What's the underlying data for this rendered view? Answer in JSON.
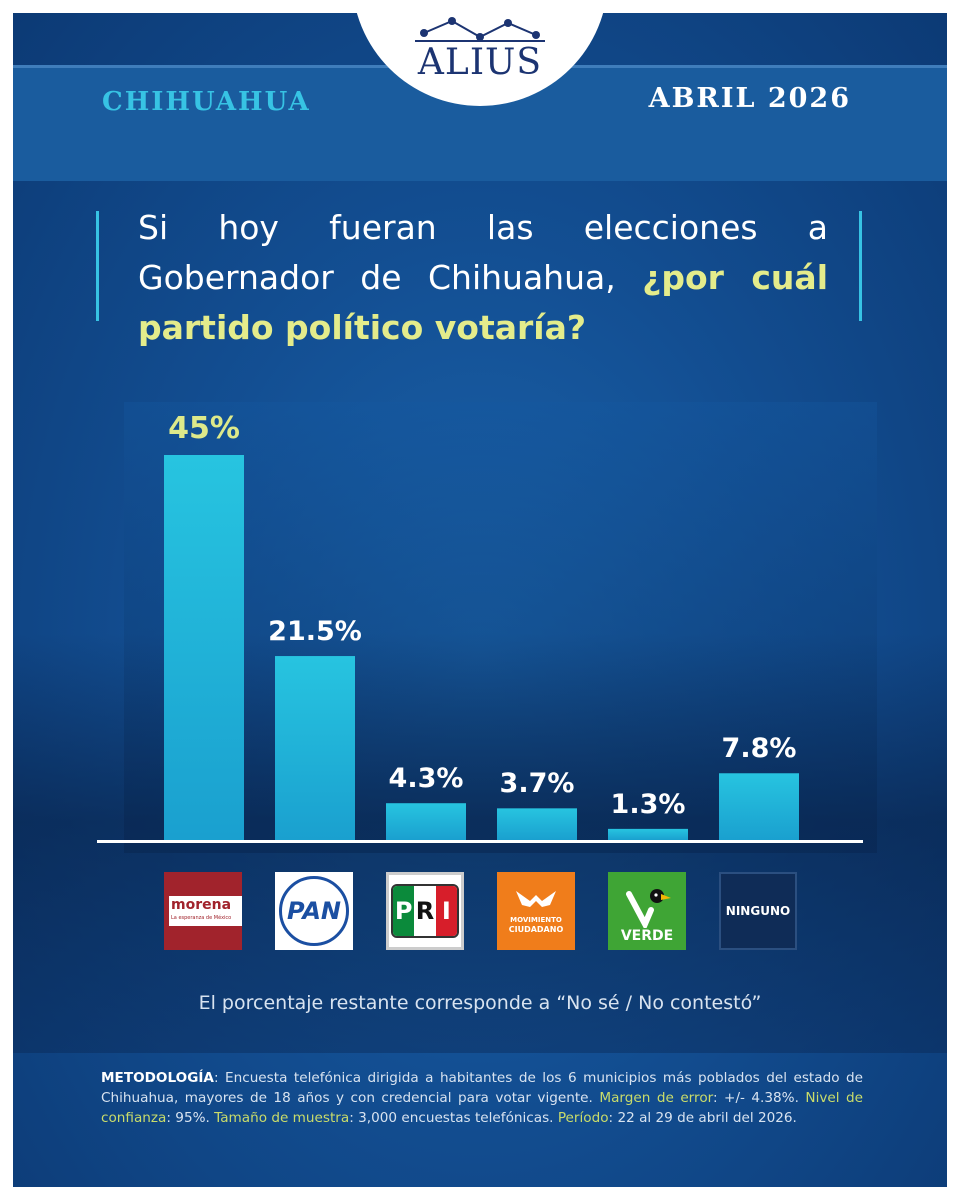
{
  "header": {
    "logo_text": "ALIUS",
    "location": "CHIHUAHUA",
    "date": "ABRIL 2026"
  },
  "question": {
    "plain": "Si hoy fueran las elecciones a Gobernador de Chihuahua,",
    "highlight": "¿por cuál partido político votaría?"
  },
  "chart_data": {
    "type": "bar",
    "categories": [
      "morena",
      "PAN",
      "PRI",
      "MOVIMIENTO CIUDADANO",
      "VERDE",
      "NINGUNO"
    ],
    "values": [
      45,
      21.5,
      4.3,
      3.7,
      1.3,
      7.8
    ],
    "labels": [
      "45%",
      "21.5%",
      "4.3%",
      "3.7%",
      "1.3%",
      "7.8%"
    ],
    "ylim": [
      0,
      50
    ],
    "bar_color": "#27c4e0",
    "highlight_label_color": "#dde98a"
  },
  "parties": {
    "morena": {
      "name": "morena",
      "tagline": "La esperanza de México",
      "color": "#a1232c"
    },
    "pan": {
      "name": "PAN",
      "color": "#1b4fa2"
    },
    "pri": {
      "letters": [
        "P",
        "R",
        "I"
      ],
      "colors": [
        "#0b8a3b",
        "#ffffff",
        "#d71e2a"
      ]
    },
    "mc": {
      "line1": "MOVIMIENTO",
      "line2": "CIUDADANO",
      "color": "#f07d1b"
    },
    "verde": {
      "name": "VERDE",
      "color": "#3fa535"
    },
    "ninguno": {
      "name": "NINGUNO",
      "color": "#0f2c57"
    }
  },
  "note": "El porcentaje restante corresponde a “No sé / No contestó”",
  "methodology": {
    "title": "METODOLOGÍA",
    "text1": ": Encuesta telefónica dirigida a habitantes de los 6 municipios más poblados del estado de Chihuahua, mayores de 18 años y con credencial para votar vigente.",
    "margin_label": "Margen de error",
    "margin_value": ": +/- 4.38%.",
    "confidence_label": "Nivel de confianza",
    "confidence_value": ": 95%.",
    "sample_label": "Tamaño de muestra",
    "sample_value": ": 3,000 encuestas telefónicas.",
    "period_label": "Período",
    "period_value": ": 22 al 29 de abril del 2026."
  }
}
